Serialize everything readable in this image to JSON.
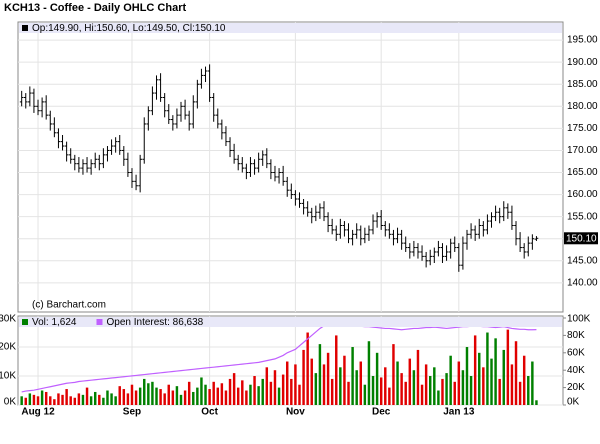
{
  "title": "KCH13 - Coffee - Daily OHLC Chart",
  "chart_data": [
    {
      "type": "ohlc",
      "legend": "Op:149.90, Hi:150.60, Lo:149.50, Cl:150.10",
      "watermark": "(c) Barchart.com",
      "price_tag": "150.10",
      "color": "#000000",
      "grid": true,
      "xlim": [
        -0.9,
        132.5
      ],
      "xticks": [
        {
          "value": 4,
          "label": "Aug 12"
        },
        {
          "value": 27,
          "label": "Sep"
        },
        {
          "value": 46,
          "label": "Oct"
        },
        {
          "value": 67,
          "label": "Nov"
        },
        {
          "value": 88,
          "label": "Dec"
        },
        {
          "value": 107,
          "label": "Jan 13"
        }
      ],
      "ylim": [
        133.4,
        199.1
      ],
      "yticks": [
        {
          "value": 140,
          "label": "140.00"
        },
        {
          "value": 145,
          "label": "145.00"
        },
        {
          "value": 150,
          "label": "150.00"
        },
        {
          "value": 155,
          "label": "155.00"
        },
        {
          "value": 160,
          "label": "160.00"
        },
        {
          "value": 165,
          "label": "165.00"
        },
        {
          "value": 170,
          "label": "170.00"
        },
        {
          "value": 175,
          "label": "175.00"
        },
        {
          "value": 180,
          "label": "180.00"
        },
        {
          "value": 185,
          "label": "185.00"
        },
        {
          "value": 190,
          "label": "190.00"
        },
        {
          "value": 195,
          "label": "195.00"
        }
      ],
      "open": [
        181,
        182,
        181,
        183,
        180,
        179,
        181,
        178,
        176,
        174,
        172,
        171,
        169,
        168,
        167,
        166,
        167,
        166,
        167,
        168,
        167,
        169,
        170,
        171,
        172,
        170,
        168,
        165,
        163,
        162,
        168,
        176,
        179,
        183,
        186,
        182,
        179,
        177,
        176,
        178,
        180,
        178,
        176,
        181,
        185,
        187,
        188,
        182,
        178,
        176,
        174,
        172,
        170,
        168,
        167,
        166,
        165,
        167,
        166,
        168,
        169,
        167,
        165,
        164,
        165,
        163,
        161,
        160,
        159,
        158,
        157,
        156,
        155,
        156,
        157,
        155,
        153,
        152,
        151,
        153,
        152,
        150,
        151,
        152,
        150,
        151,
        152,
        154,
        155,
        153,
        152,
        151,
        150,
        151,
        149,
        148,
        147,
        148,
        147,
        146,
        145,
        146,
        147,
        148,
        146,
        147,
        149,
        148,
        144,
        149,
        151,
        152,
        151,
        153,
        152,
        154,
        155,
        156,
        155,
        157,
        156,
        153,
        150,
        148,
        147,
        149,
        149.9
      ],
      "high": [
        183.5,
        183,
        184.5,
        184,
        181.5,
        182,
        182.5,
        179,
        177.5,
        175,
        173.5,
        172,
        170.5,
        169,
        168.5,
        168,
        168.5,
        168,
        169.5,
        169,
        170.5,
        171,
        172.5,
        173,
        173.5,
        171,
        169.5,
        166,
        164.5,
        169,
        177.5,
        180,
        184.5,
        187,
        187.5,
        183,
        180.5,
        178,
        179.5,
        181,
        181.5,
        179,
        182.5,
        186,
        188.5,
        189,
        189.5,
        183,
        179.5,
        177,
        175.5,
        173,
        171.5,
        169,
        168.5,
        167,
        168.5,
        168,
        169.5,
        170,
        170.5,
        168,
        166.5,
        166,
        166.5,
        164,
        162.5,
        161,
        160.5,
        159,
        158.5,
        157,
        157.5,
        158,
        158.5,
        156,
        154.5,
        153,
        154.5,
        154,
        153.5,
        152,
        153.5,
        153,
        152.5,
        153,
        155.5,
        156,
        156.5,
        154,
        153.5,
        152,
        152.5,
        152,
        150.5,
        149,
        149.5,
        149,
        148.5,
        147,
        147.5,
        148,
        149.5,
        149,
        148.5,
        150,
        150.5,
        149,
        150.5,
        152,
        153.5,
        153,
        154.5,
        154,
        155.5,
        156,
        157.5,
        157,
        158.5,
        158,
        157.5,
        154,
        151.5,
        149,
        150.5,
        151,
        150.6
      ],
      "low": [
        180,
        179.5,
        180,
        178.5,
        178,
        177.5,
        177,
        174.5,
        173,
        170.5,
        170,
        167.5,
        167,
        165.5,
        165,
        164.5,
        165,
        164.5,
        166,
        165.5,
        166,
        167.5,
        169,
        169.5,
        169,
        166.5,
        164,
        161.5,
        161,
        160.5,
        167,
        174.5,
        178,
        181.5,
        181,
        177.5,
        176,
        174.5,
        175,
        176.5,
        177,
        174.5,
        175,
        179.5,
        184,
        185.5,
        181,
        176.5,
        175,
        172.5,
        171,
        168.5,
        167,
        165.5,
        165,
        163.5,
        164,
        164.5,
        165,
        166.5,
        166,
        163.5,
        163,
        162.5,
        162,
        159.5,
        159,
        157.5,
        157,
        155.5,
        155,
        153.5,
        154,
        154.5,
        154,
        151.5,
        151,
        149.5,
        150,
        150.5,
        149,
        148.5,
        150,
        148.5,
        149,
        149.5,
        151,
        152.5,
        152,
        150.5,
        150,
        148.5,
        149,
        147.5,
        147,
        145.5,
        146,
        145.5,
        145,
        143.5,
        144,
        144.5,
        146,
        144.5,
        145,
        145.5,
        147,
        142.5,
        143,
        147.5,
        150,
        149.5,
        150,
        150.5,
        151,
        152.5,
        154,
        153.5,
        154,
        154.5,
        152,
        148.5,
        147,
        145.5,
        146,
        147.5,
        149.5
      ],
      "close": [
        182,
        181,
        183,
        180,
        179,
        181,
        178,
        176,
        174,
        172,
        171,
        169,
        168,
        167,
        166,
        167,
        166,
        167,
        168,
        167,
        169,
        170,
        171,
        172,
        170,
        168,
        165,
        163,
        162,
        168,
        176,
        179,
        183,
        186,
        182,
        179,
        177,
        176,
        178,
        180,
        178,
        176,
        181,
        185,
        187,
        188,
        182,
        178,
        176,
        174,
        172,
        170,
        168,
        167,
        166,
        165,
        167,
        166,
        168,
        169,
        167,
        165,
        164,
        165,
        163,
        161,
        160,
        159,
        158,
        157,
        156,
        155,
        156,
        157,
        155,
        153,
        152,
        151,
        153,
        152,
        150,
        151,
        152,
        150,
        151,
        152,
        154,
        155,
        153,
        152,
        151,
        150,
        151,
        149,
        148,
        147,
        148,
        147,
        146,
        145,
        146,
        147,
        148,
        146,
        147,
        149,
        148,
        144,
        149,
        151,
        152,
        151,
        153,
        152,
        154,
        155,
        156,
        155,
        157,
        156,
        153,
        150,
        148,
        147,
        149,
        150,
        150.1
      ]
    },
    {
      "type": "bar",
      "ylim": [
        0,
        30700
      ],
      "yticks": [
        {
          "value": 0,
          "label": "0K"
        },
        {
          "value": 10000,
          "label": "10K"
        },
        {
          "value": 20000,
          "label": "20K"
        },
        {
          "value": 30000,
          "label": "30K"
        }
      ],
      "y2lim": [
        0,
        102300
      ],
      "y2ticks": [
        {
          "value": 0,
          "label": "0K"
        },
        {
          "value": 20000,
          "label": "20K"
        },
        {
          "value": 40000,
          "label": "40K"
        },
        {
          "value": 60000,
          "label": "60K"
        },
        {
          "value": 80000,
          "label": "80K"
        },
        {
          "value": 100000,
          "label": "100K"
        }
      ],
      "series": [
        {
          "name": "Vol: 1,624",
          "color": "#008000",
          "down_color": "#e00000",
          "values": [
            3000,
            2500,
            4000,
            3500,
            3000,
            5000,
            4500,
            3000,
            2000,
            4000,
            3500,
            5500,
            3000,
            2500,
            4000,
            3500,
            6000,
            3000,
            4500,
            3500,
            2500,
            5000,
            4000,
            3000,
            6500,
            5500,
            4000,
            7000,
            5000,
            6000,
            9000,
            7500,
            8000,
            6000,
            5500,
            4000,
            7000,
            5000,
            6500,
            3500,
            5000,
            8000,
            4500,
            6000,
            9500,
            7000,
            5500,
            8000,
            6000,
            7500,
            5000,
            9000,
            11000,
            6000,
            8500,
            5000,
            7000,
            10000,
            6500,
            9000,
            13000,
            8000,
            12000,
            6000,
            10500,
            15000,
            9000,
            14000,
            7000,
            19000,
            25000,
            16000,
            11000,
            21000,
            14000,
            18000,
            9000,
            24000,
            13000,
            17000,
            8000,
            20000,
            12000,
            15000,
            7000,
            22000,
            10000,
            18000,
            9500,
            13000,
            6000,
            21000,
            15000,
            11000,
            8000,
            16000,
            12000,
            19000,
            7000,
            14000,
            10000,
            13000,
            5000,
            9000,
            11000,
            17000,
            8000,
            15000,
            12000,
            20000,
            10000,
            24000,
            18000,
            13000,
            25000,
            16000,
            23000,
            9000,
            19000,
            26000,
            14000,
            22000,
            8000,
            17000,
            10000,
            15000,
            1624
          ]
        },
        {
          "name": "Open Interest: 86,638",
          "color": "#c060ff",
          "axis": "y2",
          "values": [
            15000,
            16000,
            16500,
            17000,
            18000,
            19000,
            20000,
            21000,
            22000,
            23000,
            24000,
            25000,
            25500,
            26000,
            27000,
            27500,
            28000,
            28500,
            29000,
            29500,
            30000,
            30500,
            31000,
            31500,
            32000,
            32500,
            33000,
            33500,
            34000,
            34500,
            35000,
            35500,
            36000,
            36500,
            37000,
            37500,
            38000,
            38500,
            39000,
            39500,
            40000,
            40500,
            41000,
            41500,
            42000,
            42500,
            43000,
            43500,
            44000,
            44500,
            45000,
            45500,
            46000,
            46500,
            47000,
            47500,
            48000,
            48500,
            49000,
            50000,
            51000,
            52000,
            53000,
            55000,
            57000,
            60000,
            62000,
            64000,
            68000,
            72000,
            76000,
            80000,
            84000,
            88000,
            91000,
            92000,
            92000,
            91500,
            91000,
            91000,
            91000,
            91500,
            91000,
            90500,
            90000,
            90000,
            89500,
            89000,
            88500,
            88000,
            88000,
            87500,
            87000,
            86500,
            87000,
            87500,
            88000,
            88000,
            88500,
            89000,
            89000,
            89500,
            89000,
            88500,
            88000,
            88500,
            89000,
            89500,
            90000,
            90000,
            90500,
            91000,
            90500,
            90000,
            90000,
            89500,
            89000,
            89500,
            90000,
            89000,
            88000,
            87500,
            87000,
            87000,
            86500,
            86500,
            86638
          ]
        }
      ]
    }
  ]
}
